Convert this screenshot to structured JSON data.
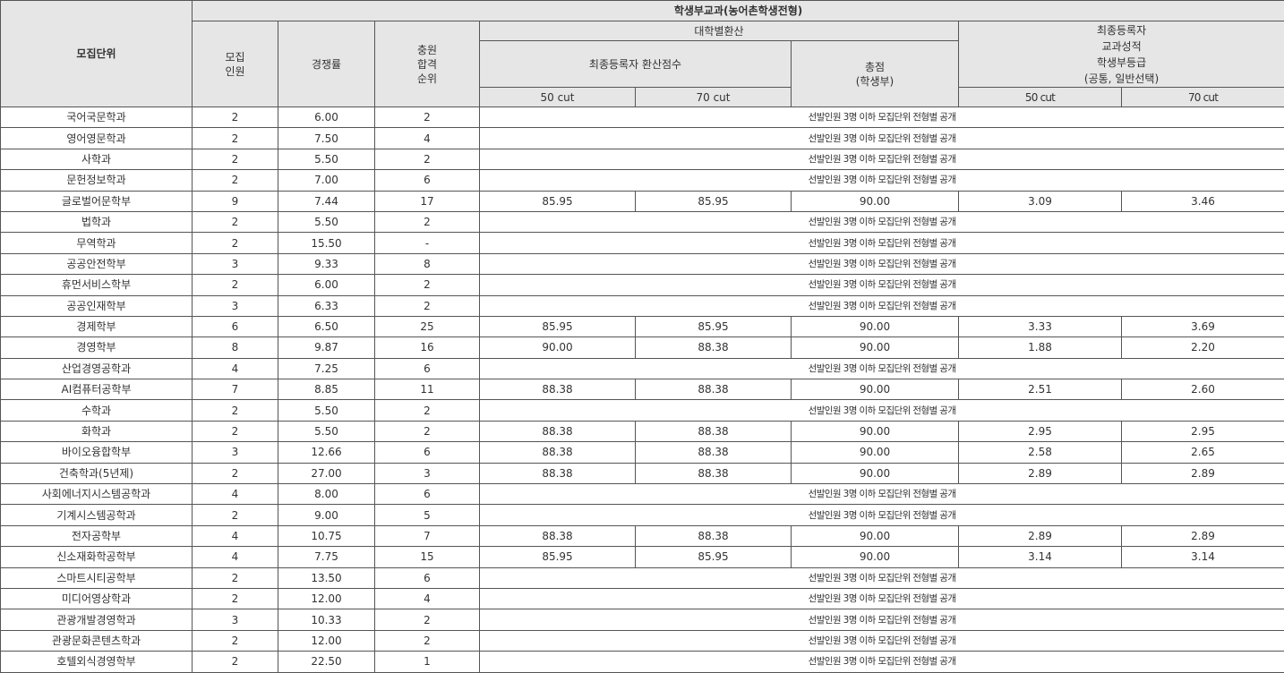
{
  "header": {
    "unit": "모집단위",
    "group": "학생부교과(농어촌학생전형)",
    "recruit": "모집\n인원",
    "competition": "경쟁률",
    "waitlist": "충원\n합격\n순위",
    "univ_conv": "대학별환산",
    "final_conv_score": "최종등록자 환산점수",
    "total": "총점\n(학생부)",
    "final_grade": "최종등록자\n교과성적\n학생부등급\n(공통, 일반선택)",
    "cut50": "50 cut",
    "cut70": "70 cut",
    "grade_cut50": "50 cut",
    "grade_cut70": "70 cut"
  },
  "notice": "선발인원 3명 이하 모집단위 전형별 공개",
  "rows": [
    {
      "unit": "국어국문학과",
      "recruit": "2",
      "rate": "6.00",
      "rank": "2"
    },
    {
      "unit": "영어영문학과",
      "recruit": "2",
      "rate": "7.50",
      "rank": "4"
    },
    {
      "unit": "사학과",
      "recruit": "2",
      "rate": "5.50",
      "rank": "2"
    },
    {
      "unit": "문헌정보학과",
      "recruit": "2",
      "rate": "7.00",
      "rank": "6"
    },
    {
      "unit": "글로벌어문학부",
      "recruit": "9",
      "rate": "7.44",
      "rank": "17",
      "c50": "85.95",
      "c70": "85.95",
      "total": "90.00",
      "g50": "3.09",
      "g70": "3.46"
    },
    {
      "unit": "법학과",
      "recruit": "2",
      "rate": "5.50",
      "rank": "2"
    },
    {
      "unit": "무역학과",
      "recruit": "2",
      "rate": "15.50",
      "rank": "-"
    },
    {
      "unit": "공공안전학부",
      "recruit": "3",
      "rate": "9.33",
      "rank": "8"
    },
    {
      "unit": "휴먼서비스학부",
      "recruit": "2",
      "rate": "6.00",
      "rank": "2"
    },
    {
      "unit": "공공인재학부",
      "recruit": "3",
      "rate": "6.33",
      "rank": "2"
    },
    {
      "unit": "경제학부",
      "recruit": "6",
      "rate": "6.50",
      "rank": "25",
      "c50": "85.95",
      "c70": "85.95",
      "total": "90.00",
      "g50": "3.33",
      "g70": "3.69"
    },
    {
      "unit": "경영학부",
      "recruit": "8",
      "rate": "9.87",
      "rank": "16",
      "c50": "90.00",
      "c70": "88.38",
      "total": "90.00",
      "g50": "1.88",
      "g70": "2.20"
    },
    {
      "unit": "산업경영공학과",
      "recruit": "4",
      "rate": "7.25",
      "rank": "6"
    },
    {
      "unit": "AI컴퓨터공학부",
      "recruit": "7",
      "rate": "8.85",
      "rank": "11",
      "c50": "88.38",
      "c70": "88.38",
      "total": "90.00",
      "g50": "2.51",
      "g70": "2.60"
    },
    {
      "unit": "수학과",
      "recruit": "2",
      "rate": "5.50",
      "rank": "2"
    },
    {
      "unit": "화학과",
      "recruit": "2",
      "rate": "5.50",
      "rank": "2",
      "c50": "88.38",
      "c70": "88.38",
      "total": "90.00",
      "g50": "2.95",
      "g70": "2.95"
    },
    {
      "unit": "바이오융합학부",
      "recruit": "3",
      "rate": "12.66",
      "rank": "6",
      "c50": "88.38",
      "c70": "88.38",
      "total": "90.00",
      "g50": "2.58",
      "g70": "2.65"
    },
    {
      "unit": "건축학과(5년제)",
      "recruit": "2",
      "rate": "27.00",
      "rank": "3",
      "c50": "88.38",
      "c70": "88.38",
      "total": "90.00",
      "g50": "2.89",
      "g70": "2.89"
    },
    {
      "unit": "사회에너지시스템공학과",
      "recruit": "4",
      "rate": "8.00",
      "rank": "6"
    },
    {
      "unit": "기계시스템공학과",
      "recruit": "2",
      "rate": "9.00",
      "rank": "5"
    },
    {
      "unit": "전자공학부",
      "recruit": "4",
      "rate": "10.75",
      "rank": "7",
      "c50": "88.38",
      "c70": "88.38",
      "total": "90.00",
      "g50": "2.89",
      "g70": "2.89"
    },
    {
      "unit": "신소재화학공학부",
      "recruit": "4",
      "rate": "7.75",
      "rank": "15",
      "c50": "85.95",
      "c70": "85.95",
      "total": "90.00",
      "g50": "3.14",
      "g70": "3.14"
    },
    {
      "unit": "스마트시티공학부",
      "recruit": "2",
      "rate": "13.50",
      "rank": "6"
    },
    {
      "unit": "미디어영상학과",
      "recruit": "2",
      "rate": "12.00",
      "rank": "4"
    },
    {
      "unit": "관광개발경영학과",
      "recruit": "3",
      "rate": "10.33",
      "rank": "2"
    },
    {
      "unit": "관광문화콘텐츠학과",
      "recruit": "2",
      "rate": "12.00",
      "rank": "2"
    },
    {
      "unit": "호텔외식경영학부",
      "recruit": "2",
      "rate": "22.50",
      "rank": "1"
    }
  ]
}
